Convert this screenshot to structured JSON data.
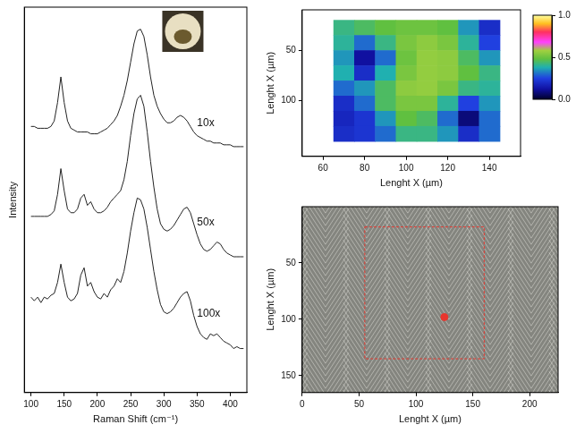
{
  "chart_data": [
    {
      "type": "line",
      "xlabel": "Raman Shift (cm⁻¹)",
      "ylabel": "Intensity",
      "xlim": [
        90,
        425
      ],
      "xticks": [
        100,
        150,
        200,
        250,
        300,
        350,
        400
      ],
      "ylim": [
        0,
        10.5
      ],
      "tick_labels": "x",
      "x": [
        100,
        105,
        110,
        115,
        120,
        125,
        130,
        135,
        140,
        145,
        150,
        155,
        160,
        165,
        170,
        175,
        180,
        185,
        190,
        195,
        200,
        205,
        210,
        215,
        220,
        225,
        230,
        235,
        240,
        245,
        250,
        255,
        260,
        265,
        270,
        275,
        280,
        285,
        290,
        295,
        300,
        305,
        310,
        315,
        320,
        325,
        330,
        335,
        340,
        345,
        350,
        355,
        360,
        365,
        370,
        375,
        380,
        385,
        390,
        395,
        400,
        405,
        410,
        415,
        420
      ],
      "series": [
        {
          "name": "10x",
          "color": "#222222",
          "values": [
            7.25,
            7.25,
            7.2,
            7.2,
            7.2,
            7.2,
            7.25,
            7.4,
            7.9,
            8.6,
            7.9,
            7.4,
            7.2,
            7.15,
            7.1,
            7.1,
            7.1,
            7.1,
            7.05,
            7.05,
            7.05,
            7.1,
            7.15,
            7.2,
            7.3,
            7.4,
            7.55,
            7.8,
            8.1,
            8.5,
            9.0,
            9.5,
            9.85,
            9.9,
            9.7,
            9.2,
            8.6,
            8.1,
            7.8,
            7.6,
            7.45,
            7.35,
            7.35,
            7.4,
            7.5,
            7.55,
            7.5,
            7.4,
            7.25,
            7.1,
            7.0,
            6.95,
            6.9,
            6.85,
            6.85,
            6.8,
            6.8,
            6.8,
            6.75,
            6.75,
            6.75,
            6.7,
            6.7,
            6.7,
            6.7
          ]
        },
        {
          "name": "50x",
          "color": "#222222",
          "values": [
            4.8,
            4.8,
            4.8,
            4.8,
            4.8,
            4.8,
            4.85,
            4.95,
            5.4,
            6.1,
            5.5,
            5.0,
            4.9,
            4.9,
            5.0,
            5.3,
            5.4,
            5.1,
            5.2,
            5.0,
            4.9,
            4.9,
            4.95,
            5.05,
            5.2,
            5.3,
            5.4,
            5.5,
            5.8,
            6.3,
            7.0,
            7.6,
            8.0,
            8.1,
            7.8,
            7.1,
            6.3,
            5.6,
            5.0,
            4.6,
            4.45,
            4.4,
            4.45,
            4.55,
            4.7,
            4.85,
            5.0,
            5.05,
            4.9,
            4.6,
            4.3,
            4.05,
            3.9,
            3.85,
            3.9,
            4.0,
            4.1,
            4.05,
            3.9,
            3.8,
            3.75,
            3.7,
            3.7,
            3.7,
            3.7
          ]
        },
        {
          "name": "100x",
          "color": "#222222",
          "values": [
            2.6,
            2.5,
            2.6,
            2.45,
            2.6,
            2.55,
            2.65,
            2.7,
            3.0,
            3.5,
            3.0,
            2.6,
            2.5,
            2.55,
            2.7,
            3.2,
            3.4,
            2.9,
            3.0,
            2.75,
            2.6,
            2.55,
            2.7,
            2.6,
            2.8,
            2.9,
            3.1,
            3.0,
            3.3,
            3.8,
            4.4,
            4.9,
            5.3,
            5.25,
            5.0,
            4.5,
            3.9,
            3.3,
            2.8,
            2.4,
            2.2,
            2.15,
            2.2,
            2.3,
            2.45,
            2.6,
            2.7,
            2.75,
            2.5,
            2.1,
            1.8,
            1.6,
            1.5,
            1.45,
            1.6,
            1.55,
            1.6,
            1.5,
            1.4,
            1.35,
            1.3,
            1.2,
            1.25,
            1.2,
            1.2
          ]
        }
      ]
    },
    {
      "type": "heatmap",
      "xlabel": "Lenght X (µm)",
      "ylabel": "Lenght X (µm)",
      "xlim": [
        50,
        155
      ],
      "xticks": [
        60,
        80,
        100,
        120,
        140
      ],
      "ylim": [
        155,
        10
      ],
      "yticks": [
        50,
        100
      ],
      "x": [
        70,
        80,
        90,
        100,
        110,
        120,
        130,
        140
      ],
      "y": [
        27.5,
        42.5,
        57.5,
        72.5,
        87.5,
        102.5,
        117.5,
        132.5
      ],
      "cells": [
        [
          0.42,
          0.45,
          0.48,
          0.5,
          0.5,
          0.48,
          0.35,
          0.2
        ],
        [
          0.4,
          0.3,
          0.42,
          0.52,
          0.55,
          0.52,
          0.4,
          0.25
        ],
        [
          0.35,
          0.12,
          0.3,
          0.5,
          0.56,
          0.55,
          0.45,
          0.35
        ],
        [
          0.38,
          0.2,
          0.38,
          0.52,
          0.56,
          0.55,
          0.48,
          0.42
        ],
        [
          0.3,
          0.35,
          0.45,
          0.55,
          0.56,
          0.52,
          0.42,
          0.4
        ],
        [
          0.2,
          0.3,
          0.45,
          0.52,
          0.52,
          0.4,
          0.25,
          0.35
        ],
        [
          0.18,
          0.22,
          0.35,
          0.48,
          0.45,
          0.3,
          0.08,
          0.3
        ],
        [
          0.2,
          0.22,
          0.3,
          0.42,
          0.42,
          0.35,
          0.2,
          0.3
        ]
      ],
      "colorbar": {
        "range": [
          0,
          1
        ],
        "ticks": [
          {
            "value": 0,
            "label": "0.0"
          },
          {
            "value": 0.5,
            "label": "0.5"
          },
          {
            "value": 1,
            "label": "1.0"
          }
        ]
      }
    },
    {
      "type": "image",
      "xlabel": "Lenght X (µm)",
      "ylabel": "Lenght X (µm)",
      "xlim": [
        0,
        225
      ],
      "xticks": [
        0,
        50,
        100,
        150,
        200
      ],
      "ylim": [
        165,
        0
      ],
      "yticks": [
        50,
        100,
        150
      ],
      "region": {
        "x": [
          55,
          160
        ],
        "y": [
          18,
          135
        ]
      },
      "spot": {
        "x": 125,
        "y": 98
      },
      "color": "#e8362e"
    }
  ]
}
